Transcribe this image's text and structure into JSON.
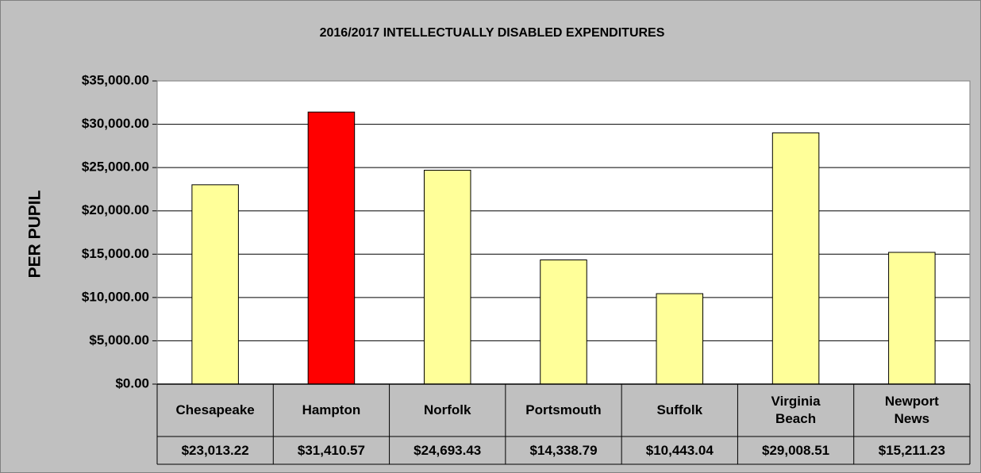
{
  "chart_data": {
    "type": "bar",
    "title": "2016/2017 INTELLECTUALLY DISABLED EXPENDITURES",
    "y_label": "PER PUPIL",
    "categories": [
      "Chesapeake",
      "Hampton",
      "Norfolk",
      "Portsmouth",
      "Suffolk",
      "Virginia Beach",
      "Newport News"
    ],
    "values": [
      23013.22,
      31410.57,
      24693.43,
      14338.79,
      10443.04,
      29008.51,
      15211.23
    ],
    "value_labels": [
      "$23,013.22",
      "$31,410.57",
      "$24,693.43",
      "$14,338.79",
      "$10,443.04",
      "$29,008.51",
      "$15,211.23"
    ],
    "colors": [
      "#ffff99",
      "#ff0000",
      "#ffff99",
      "#ffff99",
      "#ffff99",
      "#ffff99",
      "#ffff99"
    ],
    "ylim": [
      0,
      35000
    ],
    "yticks": [
      {
        "value": 0,
        "label": "$0.00"
      },
      {
        "value": 5000,
        "label": "$5,000.00"
      },
      {
        "value": 10000,
        "label": "$10,000.00"
      },
      {
        "value": 15000,
        "label": "$15,000.00"
      },
      {
        "value": 20000,
        "label": "$20,000.00"
      },
      {
        "value": 25000,
        "label": "$25,000.00"
      },
      {
        "value": 30000,
        "label": "$30,000.00"
      },
      {
        "value": 35000,
        "label": "$35,000.00"
      }
    ],
    "grid": true
  }
}
